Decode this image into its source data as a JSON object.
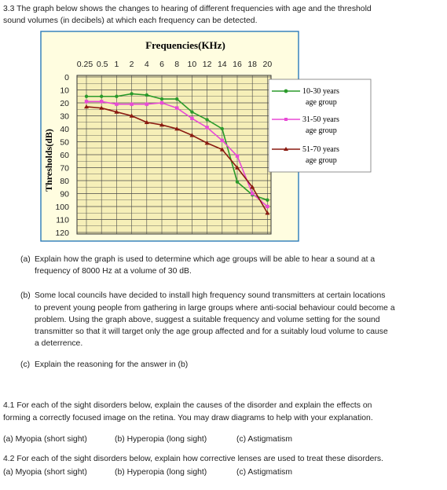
{
  "intro": {
    "line1": "3.3 The graph below shows the changes to hearing of different frequencies with age and the threshold",
    "line2": "sound volumes (in decibels) at which each frequency can be detected."
  },
  "chart_data": {
    "type": "line",
    "title": "Frequencies(KHz)",
    "xlabel": "Frequencies(KHz)",
    "ylabel": "Thresholds(dB)",
    "x_tick_labels": [
      "0.25",
      "0.5",
      "1",
      "2",
      "4",
      "6",
      "8",
      "10",
      "12",
      "14",
      "16",
      "18",
      "20"
    ],
    "y_ticks": [
      0,
      10,
      20,
      30,
      40,
      50,
      60,
      70,
      80,
      90,
      100,
      110,
      120
    ],
    "ylim": [
      0,
      120
    ],
    "y_inverted": true,
    "x_axis_position": "top",
    "grid": true,
    "legend_position": "right",
    "plot_background": "#f6efb8",
    "series": [
      {
        "name_line1": "10-30 years",
        "name_line2": "age group",
        "color": "#2a9a2a",
        "marker": "circle",
        "x": [
          "0.25",
          "0.5",
          "1",
          "2",
          "4",
          "6",
          "8",
          "10",
          "12",
          "14",
          "16",
          "18",
          "20"
        ],
        "values": [
          15,
          15,
          15,
          13,
          14,
          17,
          17,
          27,
          33,
          40,
          81,
          91,
          95
        ]
      },
      {
        "name_line1": "31-50 years",
        "name_line2": "age group",
        "color": "#e84ad6",
        "marker": "square",
        "x": [
          "0.25",
          "0.5",
          "1",
          "2",
          "4",
          "6",
          "8",
          "10",
          "12",
          "14",
          "16",
          "18",
          "20"
        ],
        "values": [
          19,
          19,
          21,
          21,
          21,
          20,
          24,
          32,
          39,
          49,
          61,
          90,
          100
        ]
      },
      {
        "name_line1": "51-70 years",
        "name_line2": "age group",
        "color": "#8a1a10",
        "marker": "triangle",
        "x": [
          "0.25",
          "0.5",
          "1",
          "2",
          "4",
          "6",
          "8",
          "10",
          "12",
          "14",
          "16",
          "18",
          "20"
        ],
        "values": [
          23,
          24,
          27,
          30,
          35,
          37,
          40,
          45,
          51,
          56,
          70,
          85,
          105
        ]
      }
    ]
  },
  "questions": {
    "a_label": "(a)",
    "a_line1": "Explain how the graph is used to determine which age groups will be able to hear a sound at a",
    "a_line2": "frequency of 8000 Hz at a volume of 30 dB.",
    "b_label": "(b)",
    "b_line1": "Some local councils have decided to install high frequency sound transmitters at certain locations",
    "b_line2": "to prevent young people from gathering in large groups where anti-social behaviour could become a",
    "b_line3": "problem.  Using the graph above, suggest a suitable frequency and volume setting for the sound",
    "b_line4": "transmitter so that it will target only the age group affected and for a suitably loud volume to cause",
    "b_line5": "a deterrence.",
    "c_label": "(c)",
    "c_line1": "Explain the reasoning for the answer in (b)"
  },
  "q41": {
    "line1": "4.1 For each of the sight disorders below, explain the causes of the disorder and explain the effects on",
    "line2": "forming a correctly focused image on the retina.  You may draw diagrams to help with your explanation.",
    "opt_a": "(a) Myopia (short sight)",
    "opt_b": "(b) Hyperopia (long sight)",
    "opt_c": "(c) Astigmatism"
  },
  "q42": {
    "line1": "4.2 For each of the sight disorders below, explain how corrective lenses are used to treat these disorders.",
    "opt_a": "(a) Myopia (short sight)",
    "opt_b": "(b) Hyperopia (long sight)",
    "opt_c": "(c) Astigmatism"
  }
}
